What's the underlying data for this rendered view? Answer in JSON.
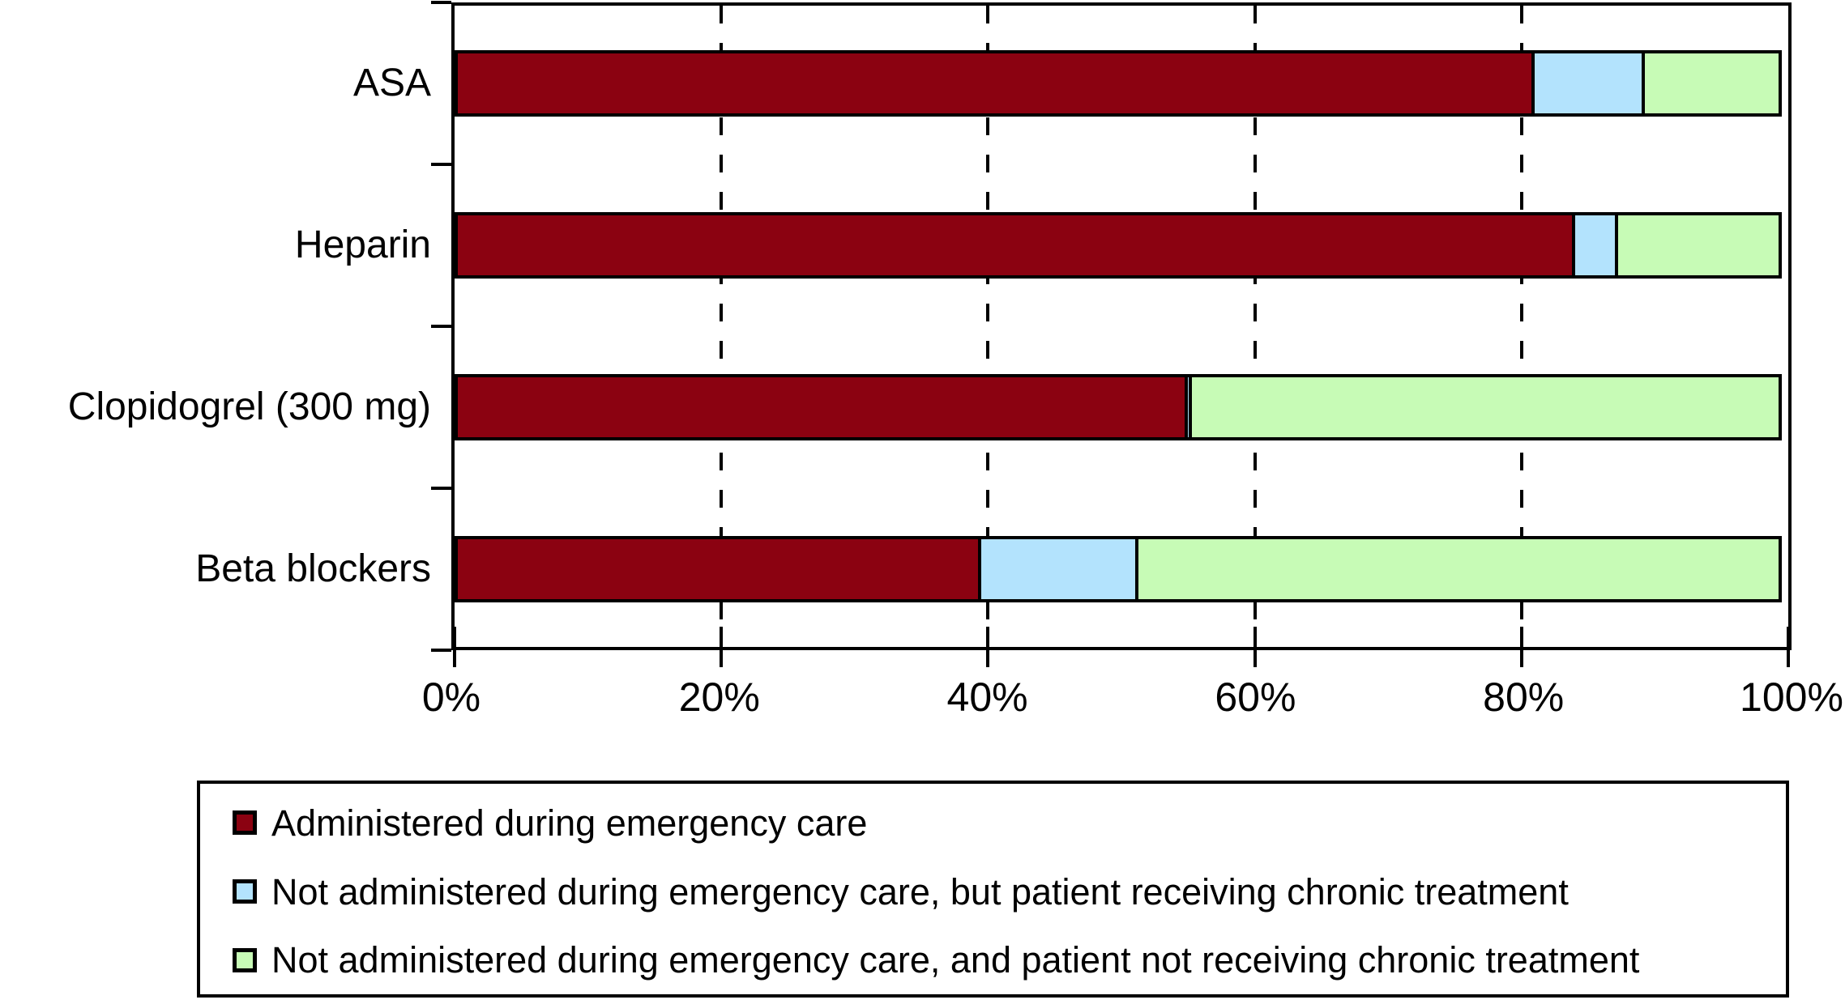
{
  "figure": {
    "background": "#ffffff",
    "frame_color": "#000000"
  },
  "chart_data": {
    "type": "bar",
    "orientation": "horizontal",
    "stacked": true,
    "title": "",
    "xlabel": "",
    "ylabel": "",
    "categories": [
      "ASA",
      "Heparin",
      "Clopidogrel (300 mg)",
      "Beta blockers"
    ],
    "series": [
      {
        "name": "Administered during emergency care",
        "color": "#8B0211",
        "values": [
          81,
          84,
          55,
          39.5
        ]
      },
      {
        "name": "Not administered during emergency care, but patient receiving chronic treatment",
        "color": "#B3E3FD",
        "values": [
          8.5,
          3.5,
          0.5,
          12
        ]
      },
      {
        "name": "Not administered during emergency care, and patient not receiving chronic treatment",
        "color": "#C7FBB6",
        "values": [
          10.5,
          12.5,
          44.5,
          48.5
        ]
      }
    ],
    "x_axis": {
      "min": 0,
      "max": 100,
      "tick_values": [
        0,
        20,
        40,
        60,
        80,
        100
      ],
      "tick_labels": [
        "0%",
        "20%",
        "40%",
        "60%",
        "80%",
        "100%"
      ]
    },
    "gridlines": {
      "values": [
        20,
        40,
        60,
        80
      ],
      "style": "dashed",
      "color": "#000000"
    },
    "legend": {
      "position": "bottom",
      "border": true
    }
  }
}
